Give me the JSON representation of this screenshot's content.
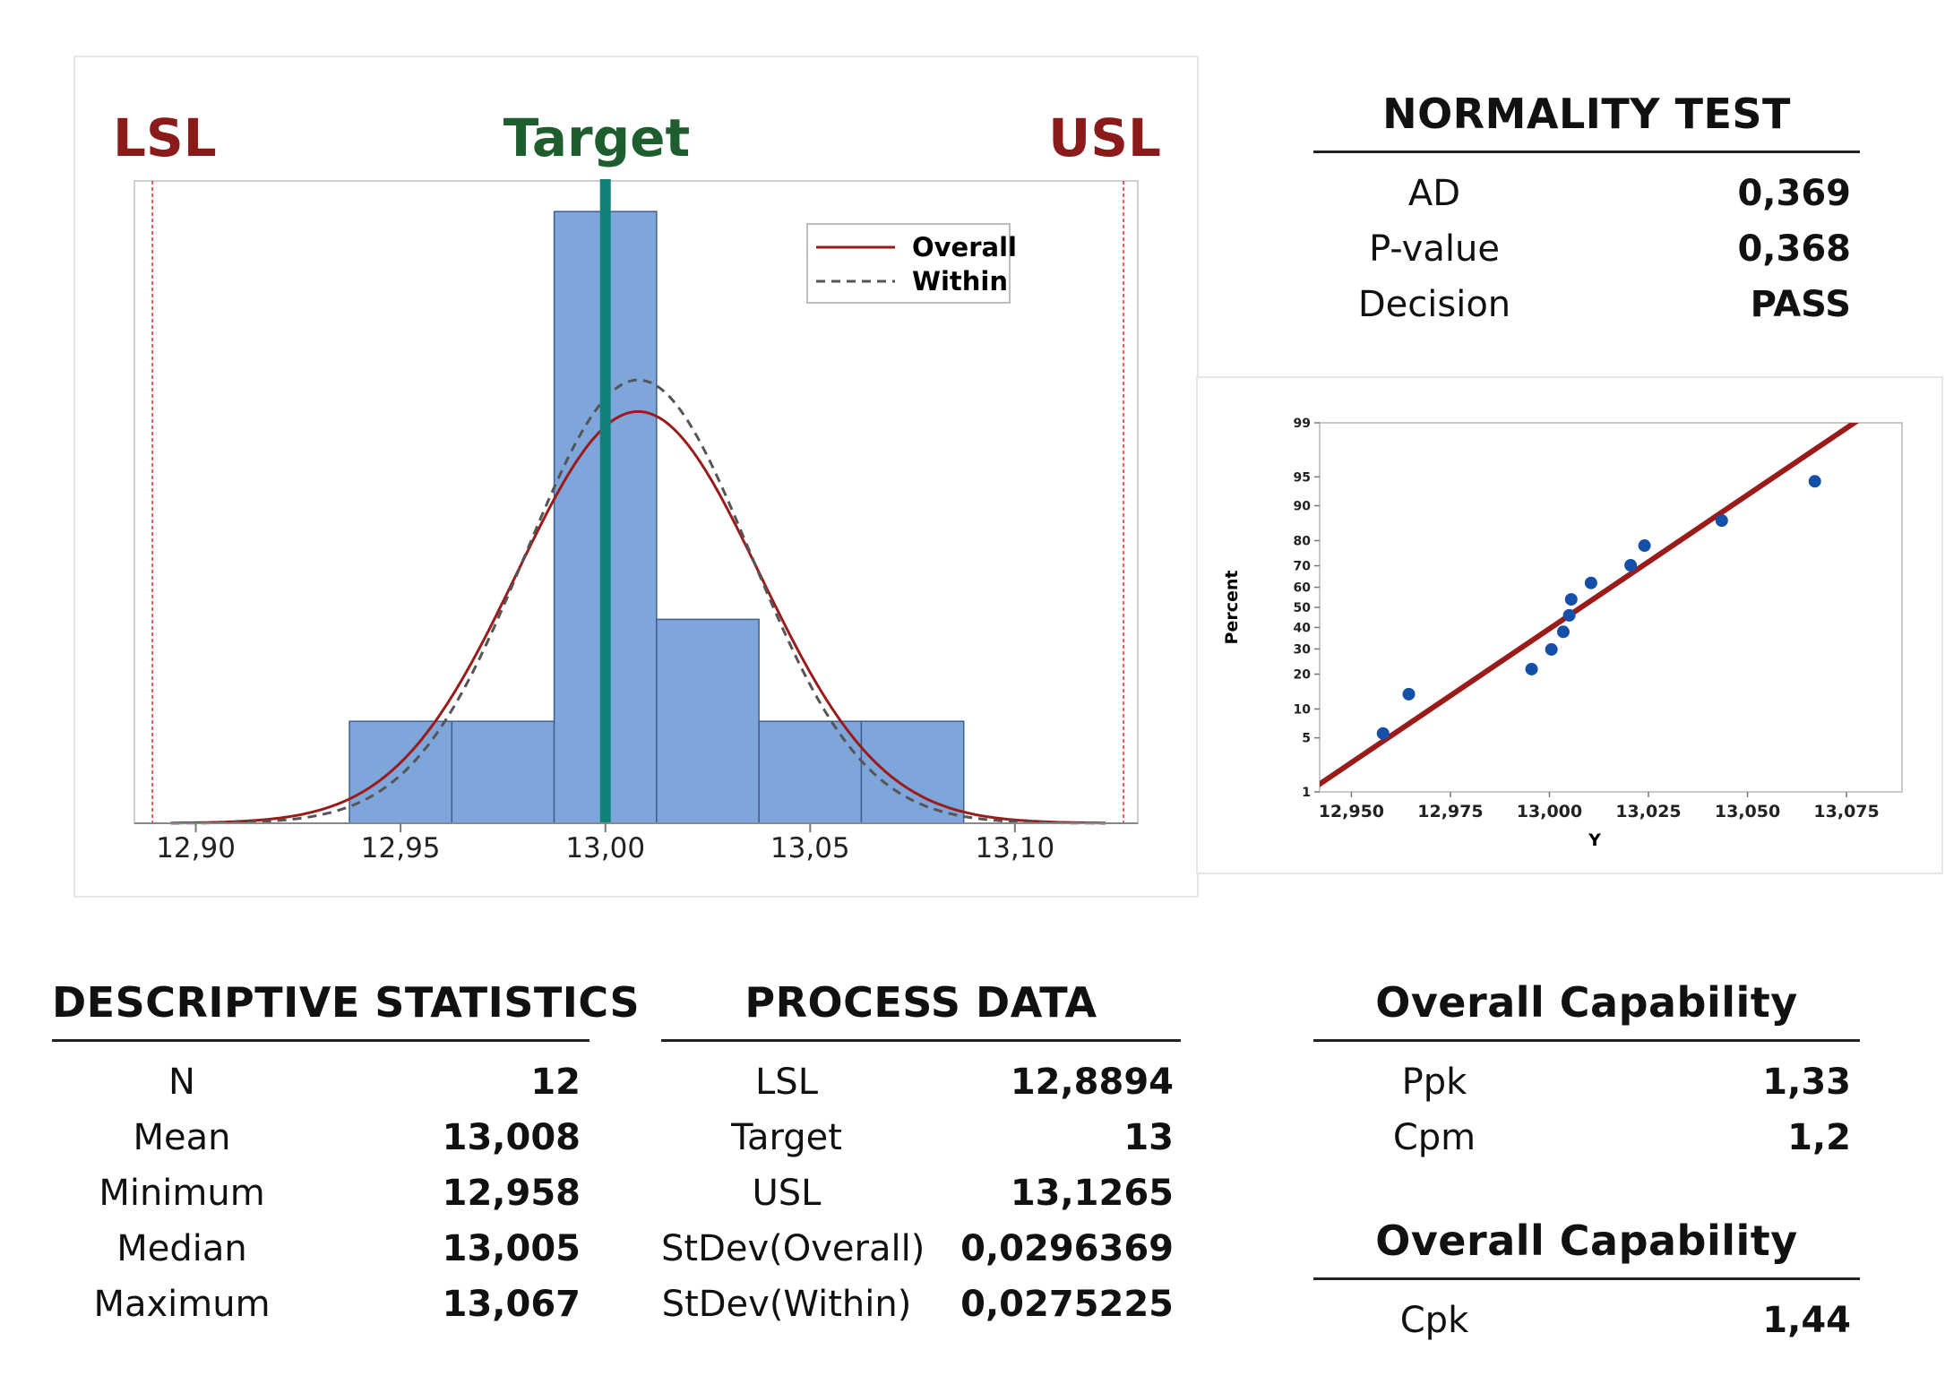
{
  "histogram": {
    "spec_labels": {
      "lsl": "LSL",
      "target": "Target",
      "usl": "USL"
    },
    "legend": {
      "overall": "Overall",
      "within": "Within"
    },
    "colors": {
      "bar": "#7ea6db",
      "bar_edge": "#3f5f8f",
      "lsl": "#8b1a1a",
      "usl": "#8b1a1a",
      "target": "#1e5e2e",
      "target_line": "#11827a",
      "overall": "#9b1b1b",
      "within": "#555555",
      "spec_line": "#e03030"
    }
  },
  "probability_plot": {
    "ylabel": "Percent",
    "xlabel": "Y",
    "colors": {
      "points": "#1550a8",
      "fit": "#9b1b1b"
    }
  },
  "normality_test": {
    "title": "NORMALITY TEST",
    "rows": [
      {
        "label": "AD",
        "value": "0,369"
      },
      {
        "label": "P-value",
        "value": "0,368"
      },
      {
        "label": "Decision",
        "value": "PASS"
      }
    ]
  },
  "descriptive_statistics": {
    "title": "DESCRIPTIVE STATISTICS",
    "rows": [
      {
        "label": "N",
        "value": "12"
      },
      {
        "label": "Mean",
        "value": "13,008"
      },
      {
        "label": "Minimum",
        "value": "12,958"
      },
      {
        "label": "Median",
        "value": "13,005"
      },
      {
        "label": "Maximum",
        "value": "13,067"
      }
    ]
  },
  "process_data": {
    "title": "PROCESS DATA",
    "rows": [
      {
        "label": "LSL",
        "value": "12,8894"
      },
      {
        "label": "Target",
        "value": "13"
      },
      {
        "label": "USL",
        "value": "13,1265"
      },
      {
        "label": "StDev(Overall)",
        "value": "0,0296369"
      },
      {
        "label": "StDev(Within)",
        "value": "0,0275225"
      }
    ]
  },
  "overall_capability": {
    "title": "Overall Capability",
    "rows": [
      {
        "label": "Ppk",
        "value": "1,33"
      },
      {
        "label": "Cpm",
        "value": "1,2"
      }
    ]
  },
  "overall_capability_2": {
    "title": "Overall Capability",
    "rows": [
      {
        "label": "Cpk",
        "value": "1,44"
      }
    ]
  },
  "chart_data": [
    {
      "type": "bar",
      "title": "",
      "xlabel": "",
      "ylabel": "",
      "xlim": [
        12.885,
        13.13
      ],
      "ylim": [
        0,
        6.3
      ],
      "bin_edges": [
        12.9375,
        12.9625,
        12.9875,
        13.0125,
        13.0375,
        13.0625,
        13.0875
      ],
      "values": [
        1,
        1,
        6,
        2,
        1,
        1
      ],
      "x_ticks": [
        12.9,
        12.95,
        13.0,
        13.05,
        13.1
      ],
      "x_tick_labels": [
        "12,90",
        "12,95",
        "13,00",
        "13,05",
        "13,10"
      ],
      "lsl": 12.8894,
      "target": 13.0,
      "usl": 13.1265,
      "mean": 13.008,
      "series": [
        {
          "name": "Overall",
          "style": "solid",
          "stdev": 0.0296369
        },
        {
          "name": "Within",
          "style": "dashed",
          "stdev": 0.0275225
        }
      ],
      "bin_width": 0.025,
      "n": 12,
      "legend_position": "top-right"
    },
    {
      "type": "scatter",
      "title": "",
      "xlabel": "Y",
      "ylabel": "Percent",
      "xlim": [
        12.942,
        13.089
      ],
      "x_ticks": [
        12.95,
        12.975,
        13.0,
        13.025,
        13.05,
        13.075
      ],
      "x_tick_labels": [
        "12,950",
        "12,975",
        "13,000",
        "13,025",
        "13,050",
        "13,075"
      ],
      "y_ticks": [
        1,
        5,
        10,
        20,
        30,
        40,
        50,
        60,
        70,
        80,
        90,
        95,
        99
      ],
      "y_tick_labels": [
        "1",
        "5",
        "10",
        "20",
        "30",
        "40",
        "50",
        "60",
        "70",
        "80",
        "90",
        "95",
        "99"
      ],
      "points": [
        {
          "x": 12.958,
          "y": 5.6
        },
        {
          "x": 12.9645,
          "y": 13.7
        },
        {
          "x": 12.9955,
          "y": 21.8
        },
        {
          "x": 13.0005,
          "y": 29.8
        },
        {
          "x": 13.0035,
          "y": 37.9
        },
        {
          "x": 13.005,
          "y": 46.0
        },
        {
          "x": 13.0055,
          "y": 54.0
        },
        {
          "x": 13.0105,
          "y": 62.1
        },
        {
          "x": 13.0205,
          "y": 70.2
        },
        {
          "x": 13.024,
          "y": 78.2
        },
        {
          "x": 13.0435,
          "y": 86.3
        },
        {
          "x": 13.067,
          "y": 94.4
        }
      ],
      "fit": {
        "mean": 13.008,
        "stdev": 0.0296369
      }
    }
  ]
}
